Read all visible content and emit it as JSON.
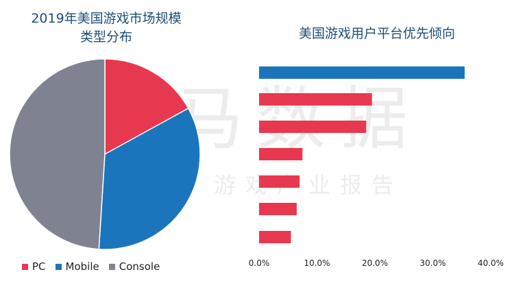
{
  "watermark": {
    "main": "伽马数据",
    "sub": "微信号：游戏产业报告"
  },
  "chart_data": [
    {
      "type": "pie",
      "title": "2019年美国游戏市场规模类型分布",
      "title_lines": [
        "2019年美国游戏市场规模",
        "类型分布"
      ],
      "categories": [
        "PC",
        "Mobile",
        "Console"
      ],
      "values": [
        17,
        34,
        49
      ],
      "colors": [
        "#e8384f",
        "#1b75bc",
        "#7f8391"
      ],
      "legend": "bottom"
    },
    {
      "type": "bar",
      "orientation": "horizontal",
      "title": "美国游戏用户平台优先倾向",
      "categories": [
        "",
        "",
        "",
        "",
        "",
        "",
        ""
      ],
      "values": [
        35.5,
        19.5,
        18.5,
        7.5,
        7.0,
        6.5,
        5.5
      ],
      "colors": [
        "#1b75bc",
        "#e8384f",
        "#e8384f",
        "#e8384f",
        "#e8384f",
        "#e8384f",
        "#e8384f"
      ],
      "xlim": [
        0,
        40
      ],
      "xticks": [
        "0.0%",
        "10.0%",
        "20.0%",
        "30.0%",
        "40.0%"
      ],
      "xlabel": "",
      "ylabel": ""
    }
  ]
}
